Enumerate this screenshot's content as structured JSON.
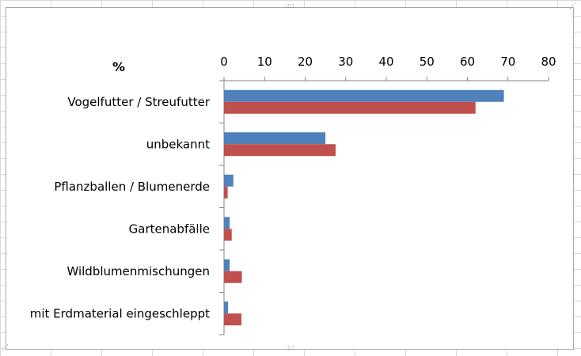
{
  "chart_data": {
    "type": "bar",
    "orientation": "horizontal",
    "title": "%",
    "xlim": [
      0,
      80
    ],
    "xticks": [
      0,
      10,
      20,
      30,
      40,
      50,
      60,
      70,
      80
    ],
    "x_axis_position": "top",
    "grid": false,
    "legend": "none",
    "categories": [
      "Vogelfutter / Streufutter",
      "unbekannt",
      "Pflanzballen / Blumenerde",
      "Gartenabfälle",
      "Wildblumenmischungen",
      "mit Erdmaterial eingeschleppt"
    ],
    "series": [
      {
        "color": "#4f81bd",
        "values": [
          69,
          25,
          2.3,
          1.4,
          1.4,
          1.0
        ]
      },
      {
        "color": "#c0504d",
        "values": [
          62,
          27.5,
          0.9,
          1.9,
          4.4,
          4.3
        ]
      }
    ]
  }
}
